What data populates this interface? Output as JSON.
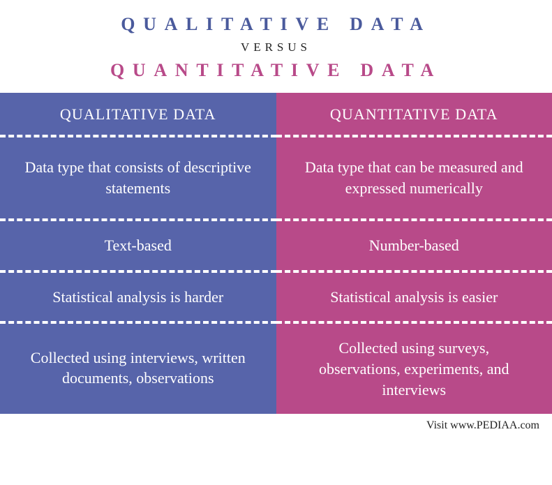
{
  "header": {
    "title_left": "QUALITATIVE DATA",
    "versus": "VERSUS",
    "title_right": "QUANTITATIVE DATA",
    "left_color": "#4a5a9c",
    "right_color": "#b84a89",
    "versus_color": "#222222"
  },
  "left": {
    "bg_color": "#5764aa",
    "dash_color": "#ffffff",
    "header": "QUALITATIVE DATA",
    "rows": [
      "Data type that consists of descriptive statements",
      "Text-based",
      "Statistical analysis is harder",
      "Collected using interviews, written documents, observations"
    ]
  },
  "right": {
    "bg_color": "#b84a89",
    "dash_color": "#ffffff",
    "header": "QUANTITATIVE DATA",
    "rows": [
      "Data type that can be measured and expressed numerically",
      "Number-based",
      "Statistical analysis is easier",
      "Collected using surveys, observations, experiments, and interviews"
    ]
  },
  "footer": "Visit www.PEDIAA.com"
}
